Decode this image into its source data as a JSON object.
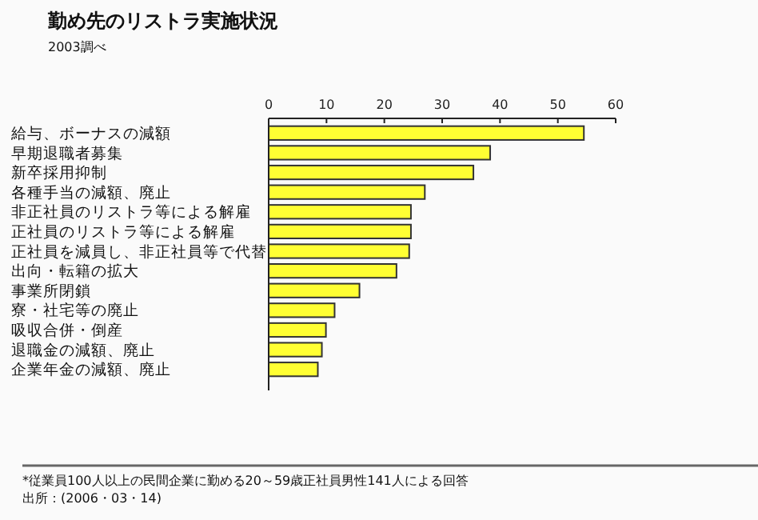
{
  "chart_data": {
    "type": "bar",
    "orientation": "horizontal",
    "title": "勤め先のリストラ実施状況",
    "subtitle": "2003調べ",
    "categories": [
      "給与、ボーナスの減額",
      "早期退職者募集",
      "新卒採用抑制",
      "各種手当の減額、廃止",
      "非正社員のリストラ等による解雇",
      "正社員のリストラ等による解雇",
      "正社員を減員し、非正社員等で代替",
      "出向・転籍の拡大",
      "事業所閉鎖",
      "寮・社宅等の廃止",
      "吸収合併・倒産",
      "退職金の減額、廃止",
      "企業年金の減額、廃止"
    ],
    "values": [
      54.5,
      38.3,
      35.4,
      27.0,
      24.6,
      24.6,
      24.3,
      22.1,
      15.7,
      11.4,
      9.9,
      9.2,
      8.5
    ],
    "color": "#ffff33",
    "xlim": [
      0,
      60
    ],
    "xticks": [
      0,
      10,
      20,
      30,
      40,
      50,
      60
    ],
    "annotations": [
      "*従業員100人以上の民間企業に勤める20～59歳正社員男性141人による回答",
      "出所：(2006・03・14)"
    ]
  }
}
